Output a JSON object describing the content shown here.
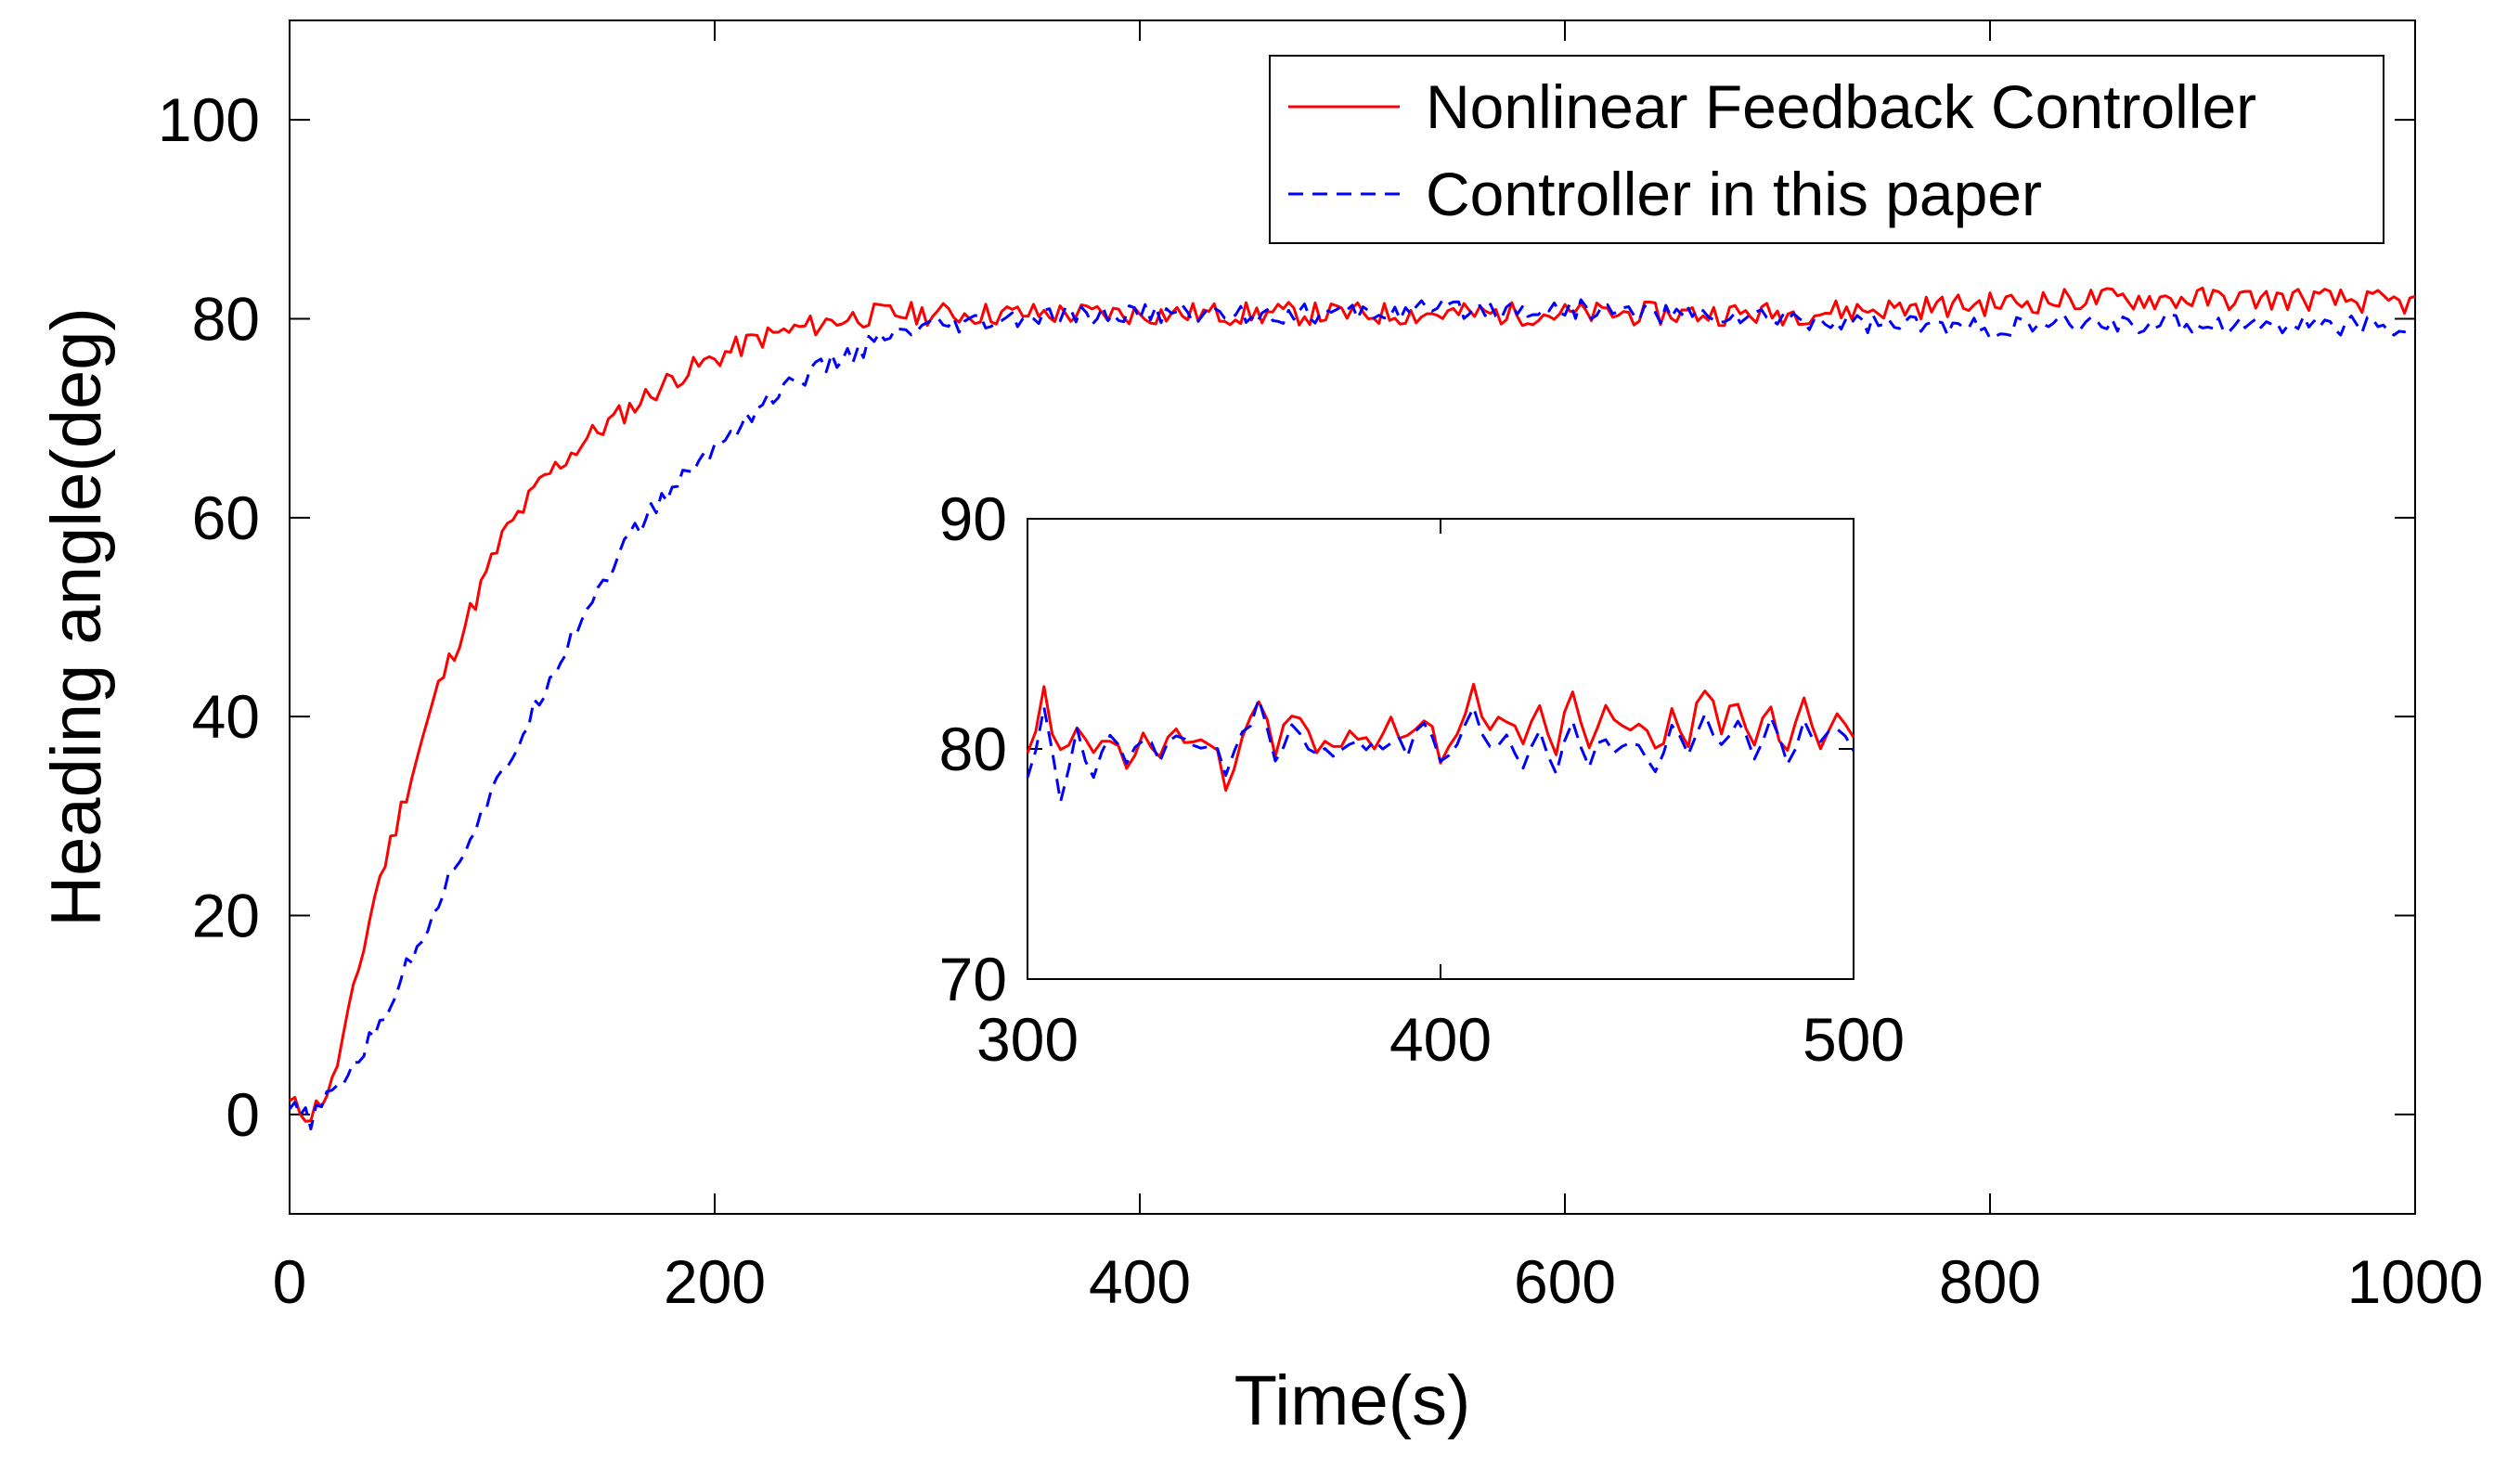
{
  "chart_data": [
    {
      "type": "line",
      "xlabel": "Time(s)",
      "ylabel": "Heading angle(deg)",
      "xlim": [
        0,
        1000
      ],
      "ylim": [
        -10,
        110
      ],
      "xticks": [
        0,
        200,
        400,
        600,
        800,
        1000
      ],
      "yticks": [
        0,
        20,
        40,
        60,
        80,
        100
      ],
      "legend_position": "top-right",
      "series": [
        {
          "name": "Nonlinear Feedback Controller",
          "color": "#ff0000",
          "style": "solid",
          "x": [
            0,
            10,
            20,
            30,
            40,
            50,
            60,
            70,
            80,
            90,
            100,
            120,
            140,
            160,
            180,
            200,
            220,
            240,
            260,
            280,
            300,
            350,
            400,
            450,
            500,
            550,
            600,
            650,
            700,
            750,
            800,
            850,
            900,
            950,
            1000
          ],
          "y": [
            1,
            0,
            3,
            12,
            22,
            29,
            36,
            43,
            48,
            53,
            58,
            64,
            68,
            71,
            74,
            76,
            78,
            79,
            80,
            80.5,
            80.5,
            80.5,
            80.5,
            80.5,
            80.5,
            80.5,
            80.5,
            80.5,
            80.5,
            81,
            81.5,
            82,
            82,
            82,
            81.5
          ],
          "noise_amplitude": 1.2
        },
        {
          "name": "Controller in this paper",
          "color": "#0000ff",
          "style": "dashed",
          "x": [
            0,
            10,
            20,
            40,
            60,
            80,
            100,
            120,
            140,
            160,
            180,
            200,
            220,
            240,
            260,
            280,
            300,
            350,
            400,
            450,
            500,
            550,
            600,
            650,
            700,
            750,
            800,
            850,
            900,
            950,
            1000
          ],
          "y": [
            0.5,
            -0.5,
            2,
            8,
            17,
            26,
            34,
            43,
            51,
            58,
            63,
            67,
            71,
            74,
            76,
            78,
            79,
            80,
            80.5,
            80.5,
            80.5,
            81,
            81,
            80.5,
            80,
            79.5,
            79,
            79.5,
            79.5,
            79.5,
            79
          ],
          "noise_amplitude": 1.0
        }
      ]
    },
    {
      "type": "line",
      "title": "",
      "xlabel": "",
      "ylabel": "",
      "xlim": [
        300,
        500
      ],
      "ylim": [
        70,
        90
      ],
      "xticks": [
        300,
        400,
        500
      ],
      "yticks": [
        70,
        80,
        90
      ],
      "series": [
        {
          "name": "Nonlinear Feedback Controller",
          "color": "#ff0000",
          "style": "solid",
          "x": [
            300,
            304,
            308,
            312,
            316,
            320,
            324,
            328,
            332,
            336,
            340,
            344,
            348,
            352,
            356,
            360,
            364,
            368,
            372,
            376,
            380,
            384,
            388,
            392,
            396,
            400,
            404,
            408,
            412,
            416,
            420,
            424,
            428,
            432,
            436,
            440,
            444,
            448,
            452,
            456,
            460,
            464,
            468,
            472,
            476,
            480,
            484,
            488,
            492,
            496,
            500
          ],
          "y": [
            80,
            82.5,
            79.5,
            81,
            79.8,
            80.7,
            79.6,
            80.5,
            80.1,
            80.8,
            80.3,
            80.6,
            78.4,
            80.7,
            82,
            79.6,
            81.5,
            80.5,
            80.1,
            80.4,
            80.8,
            80.4,
            80.9,
            80.2,
            81.7,
            79.8,
            80.7,
            82.5,
            80.5,
            81.6,
            79.9,
            81.8,
            80.1,
            82.6,
            79.9,
            81.4,
            80.7,
            81.2,
            79.6,
            81.8,
            80.5,
            82.7,
            80.5,
            82.3,
            80.2,
            81.6,
            79.6,
            82,
            80.5,
            81.5,
            80.6
          ],
          "noise_amplitude": 0.5
        },
        {
          "name": "Controller in this paper",
          "color": "#0000ff",
          "style": "dashed",
          "x": [
            300,
            304,
            308,
            312,
            316,
            320,
            324,
            328,
            332,
            336,
            340,
            344,
            348,
            352,
            356,
            360,
            364,
            368,
            372,
            376,
            380,
            384,
            388,
            392,
            396,
            400,
            404,
            408,
            412,
            416,
            420,
            424,
            428,
            432,
            436,
            440,
            444,
            448,
            452,
            456,
            460,
            464,
            468,
            472,
            476,
            480,
            484,
            488,
            492,
            496,
            500
          ],
          "y": [
            79,
            81.5,
            77.5,
            80.7,
            78.8,
            80.4,
            79.2,
            80.3,
            79.8,
            80.6,
            80.1,
            80.5,
            79,
            80.5,
            81.8,
            79.4,
            81,
            80.2,
            79.9,
            80.2,
            80.6,
            80.1,
            80.6,
            80,
            81.2,
            79.5,
            80.3,
            81.6,
            79.9,
            80.8,
            79.4,
            81,
            79.2,
            81.5,
            79.4,
            80.5,
            79.9,
            80.4,
            79.2,
            81,
            79.9,
            81.8,
            80,
            81.6,
            79.7,
            81.2,
            79.3,
            81.5,
            80.1,
            81,
            80.3
          ],
          "noise_amplitude": 0.4
        }
      ]
    }
  ]
}
